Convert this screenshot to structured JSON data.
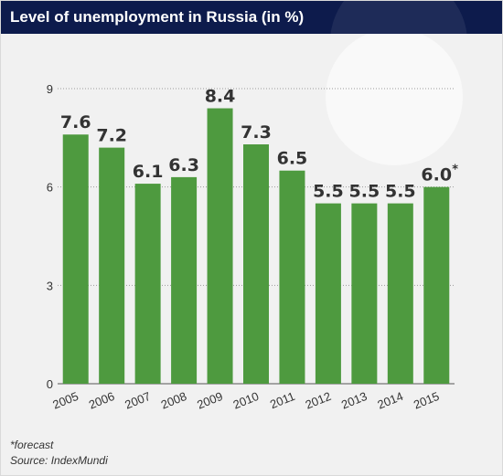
{
  "header": {
    "title": "Level of unemployment in Russia (in %)"
  },
  "footer": {
    "note": "*forecast",
    "source": "Source: IndexMundi"
  },
  "colors": {
    "bar": "#4e9a3f",
    "header_bg": "#0d1b4c",
    "background": "#f1f1f1"
  },
  "chart_data": {
    "type": "bar",
    "title": "Level of unemployment in Russia (in %)",
    "xlabel": "",
    "ylabel": "",
    "ylim": [
      0,
      9
    ],
    "yticks": [
      "0",
      "3",
      "6",
      "9"
    ],
    "grid": true,
    "categories": [
      "2005",
      "2006",
      "2007",
      "2008",
      "2009",
      "2010",
      "2011",
      "2012",
      "2013",
      "2014",
      "2015"
    ],
    "values": [
      7.6,
      7.2,
      6.1,
      6.3,
      8.4,
      7.3,
      6.5,
      5.5,
      5.5,
      5.5,
      6.0
    ],
    "value_labels": [
      "7.6",
      "7.2",
      "6.1",
      "6.3",
      "8.4",
      "7.3",
      "6.5",
      "5.5",
      "5.5",
      "5.5",
      "6.0"
    ],
    "annotations": [
      {
        "category": "2015",
        "text": "*"
      }
    ]
  }
}
